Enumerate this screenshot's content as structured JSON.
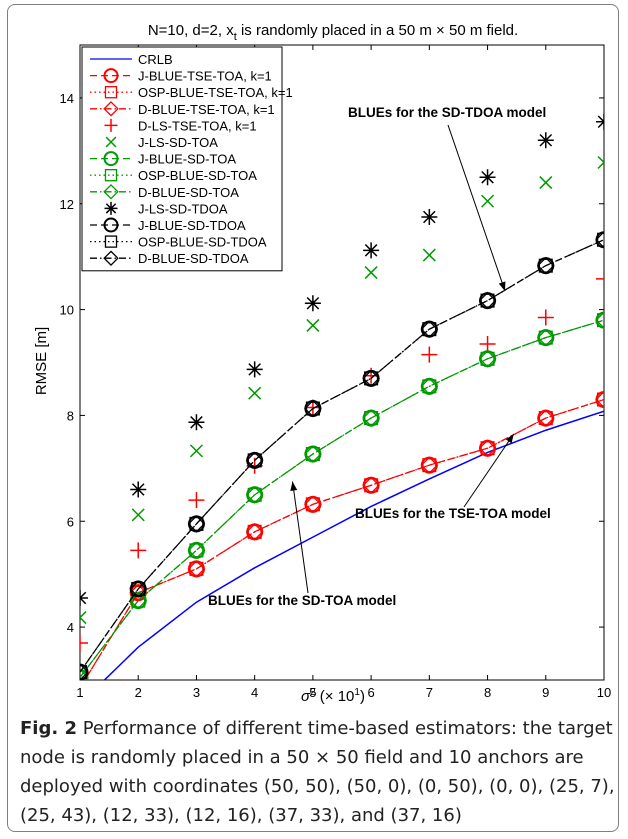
{
  "chart_data": {
    "type": "line",
    "title": "N=10, d=2, x_t is randomly placed in a 50 m × 50 m field.",
    "title_parts": {
      "prefix": "N=10, d=2, x",
      "subscript": "t",
      "suffix": " is randomly placed in a 50 m × 50 m field."
    },
    "xlabel": "σ² (× 10¹)",
    "xlabel_parts": {
      "base": "σ",
      "sup": "2",
      "paren_open": " (× 10",
      "paren_sup": "1",
      "paren_close": ")"
    },
    "ylabel": "RMSE [m]",
    "xlim": [
      1,
      10
    ],
    "ylim": [
      3,
      15
    ],
    "x_ticks": [
      "1",
      "2",
      "3",
      "4",
      "5",
      "6",
      "7",
      "8",
      "9",
      "10"
    ],
    "y_ticks": [
      "4",
      "6",
      "8",
      "10",
      "12",
      "14"
    ],
    "x": [
      1,
      2,
      3,
      4,
      5,
      6,
      7,
      8,
      9,
      10
    ],
    "grid": false,
    "legend_position": "top-left",
    "series": [
      {
        "name": "CRLB",
        "color": "#0000ff",
        "line": "solid",
        "marker": "none",
        "values": [
          2.55,
          3.62,
          4.47,
          5.12,
          5.7,
          6.28,
          6.8,
          7.3,
          7.72,
          8.08
        ]
      },
      {
        "name": "J-BLUE-TSE-TOA, k=1",
        "color": "#ff0000",
        "line": "dashed",
        "marker": "circle",
        "values": [
          2.85,
          4.65,
          5.1,
          5.8,
          6.32,
          6.68,
          7.06,
          7.38,
          7.95,
          8.3
        ]
      },
      {
        "name": "OSP-BLUE-TSE-TOA, k=1",
        "color": "#ff0000",
        "line": "dotted",
        "marker": "square",
        "values": [
          2.85,
          4.65,
          5.1,
          5.8,
          6.32,
          6.68,
          7.06,
          7.38,
          7.95,
          8.3
        ]
      },
      {
        "name": "D-BLUE-TSE-TOA, k=1",
        "color": "#ff0000",
        "line": "dashdot",
        "marker": "diamond",
        "values": [
          2.85,
          4.65,
          5.1,
          5.8,
          6.32,
          6.68,
          7.06,
          7.38,
          7.95,
          8.3
        ]
      },
      {
        "name": "D-LS-TSE-TOA, k=1",
        "color": "#ff0000",
        "line": "none",
        "marker": "plus",
        "values": [
          3.7,
          5.45,
          6.4,
          7.05,
          8.15,
          8.75,
          9.15,
          9.35,
          9.85,
          10.58
        ]
      },
      {
        "name": "J-LS-SD-TOA",
        "color": "#009900",
        "line": "none",
        "marker": "x",
        "values": [
          4.18,
          6.12,
          7.33,
          8.42,
          9.7,
          10.7,
          11.03,
          12.05,
          12.4,
          12.78
        ]
      },
      {
        "name": "J-BLUE-SD-TOA",
        "color": "#009900",
        "line": "dashed",
        "marker": "circle",
        "values": [
          3.05,
          4.5,
          5.45,
          6.5,
          7.27,
          7.95,
          8.55,
          9.07,
          9.47,
          9.8
        ]
      },
      {
        "name": "OSP-BLUE-SD-TOA",
        "color": "#009900",
        "line": "dotted",
        "marker": "square",
        "values": [
          3.05,
          4.5,
          5.45,
          6.5,
          7.27,
          7.95,
          8.55,
          9.07,
          9.47,
          9.8
        ]
      },
      {
        "name": "D-BLUE-SD-TOA",
        "color": "#009900",
        "line": "dashdot",
        "marker": "diamond",
        "values": [
          3.05,
          4.5,
          5.45,
          6.5,
          7.27,
          7.95,
          8.55,
          9.07,
          9.47,
          9.8
        ]
      },
      {
        "name": "J-LS-SD-TDOA",
        "color": "#000000",
        "line": "none",
        "marker": "asterisk",
        "values": [
          4.55,
          6.6,
          7.87,
          8.87,
          10.12,
          11.12,
          11.75,
          12.5,
          13.2,
          13.55
        ]
      },
      {
        "name": "J-BLUE-SD-TDOA",
        "color": "#000000",
        "line": "dashed",
        "marker": "circle",
        "values": [
          3.15,
          4.72,
          5.95,
          7.15,
          8.13,
          8.7,
          9.63,
          10.17,
          10.83,
          11.32
        ]
      },
      {
        "name": "OSP-BLUE-SD-TDOA",
        "color": "#000000",
        "line": "dotted",
        "marker": "square",
        "values": [
          3.15,
          4.72,
          5.95,
          7.15,
          8.13,
          8.7,
          9.63,
          10.17,
          10.83,
          11.32
        ]
      },
      {
        "name": "D-BLUE-SD-TDOA",
        "color": "#000000",
        "line": "dashdot",
        "marker": "diamond",
        "values": [
          3.15,
          4.72,
          5.95,
          7.15,
          8.13,
          8.7,
          9.63,
          10.17,
          10.83,
          11.32
        ]
      }
    ],
    "annotations": [
      {
        "text": "BLUEs for the SD-TDOA model",
        "point": [
          8.3,
          10.35
        ]
      },
      {
        "text": "BLUEs for the TSE-TOA model",
        "point": [
          8.45,
          7.65
        ]
      },
      {
        "text": "BLUEs for the SD-TOA model",
        "point": [
          4.65,
          6.75
        ]
      }
    ]
  },
  "caption": {
    "label": "Fig. 2",
    "lines": [
      " Performance of different time-based estimators: the target",
      "node is randomly placed in a 50 × 50 field and 10 anchors are",
      "deployed with coordinates (50, 50), (50, 0), (0, 50), (0, 0), (25, 7),",
      "(25, 43), (12, 33), (12, 16), (37, 33), and (37, 16)"
    ]
  }
}
